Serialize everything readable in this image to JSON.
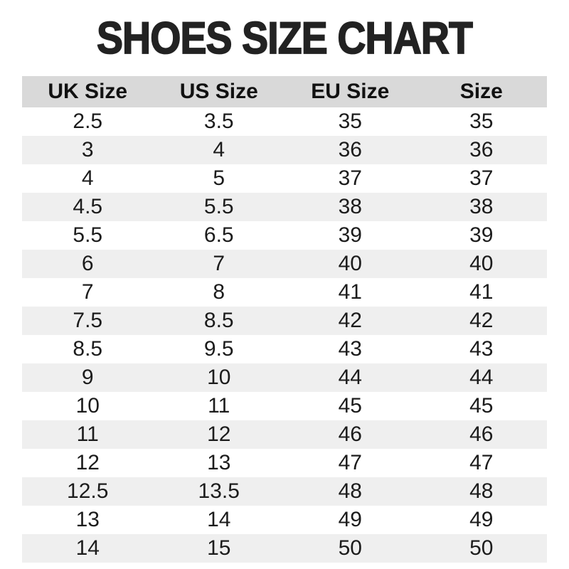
{
  "title": "SHOES SIZE CHART",
  "table": {
    "headers": [
      "UK Size",
      "US Size",
      "EU Size",
      "Size"
    ],
    "rows": [
      [
        "2.5",
        "3.5",
        "35",
        "35"
      ],
      [
        "3",
        "4",
        "36",
        "36"
      ],
      [
        "4",
        "5",
        "37",
        "37"
      ],
      [
        "4.5",
        "5.5",
        "38",
        "38"
      ],
      [
        "5.5",
        "6.5",
        "39",
        "39"
      ],
      [
        "6",
        "7",
        "40",
        "40"
      ],
      [
        "7",
        "8",
        "41",
        "41"
      ],
      [
        "7.5",
        "8.5",
        "42",
        "42"
      ],
      [
        "8.5",
        "9.5",
        "43",
        "43"
      ],
      [
        "9",
        "10",
        "44",
        "44"
      ],
      [
        "10",
        "11",
        "45",
        "45"
      ],
      [
        "11",
        "12",
        "46",
        "46"
      ],
      [
        "12",
        "13",
        "47",
        "47"
      ],
      [
        "12.5",
        "13.5",
        "48",
        "48"
      ],
      [
        "13",
        "14",
        "49",
        "49"
      ],
      [
        "14",
        "15",
        "50",
        "50"
      ]
    ]
  },
  "colors": {
    "title_text": "#222222",
    "header_bg": "#d9d9d9",
    "header_text": "#111111",
    "alt_row_bg": "#efefef",
    "row_bg": "#ffffff",
    "cell_text": "#1c1c1c"
  },
  "chart_data": {
    "type": "table",
    "title": "SHOES SIZE CHART",
    "columns": [
      "UK Size",
      "US Size",
      "EU Size",
      "Size"
    ],
    "rows": [
      [
        "2.5",
        "3.5",
        "35",
        "35"
      ],
      [
        "3",
        "4",
        "36",
        "36"
      ],
      [
        "4",
        "5",
        "37",
        "37"
      ],
      [
        "4.5",
        "5.5",
        "38",
        "38"
      ],
      [
        "5.5",
        "6.5",
        "39",
        "39"
      ],
      [
        "6",
        "7",
        "40",
        "40"
      ],
      [
        "7",
        "8",
        "41",
        "41"
      ],
      [
        "7.5",
        "8.5",
        "42",
        "42"
      ],
      [
        "8.5",
        "9.5",
        "43",
        "43"
      ],
      [
        "9",
        "10",
        "44",
        "44"
      ],
      [
        "10",
        "11",
        "45",
        "45"
      ],
      [
        "11",
        "12",
        "46",
        "46"
      ],
      [
        "12",
        "13",
        "47",
        "47"
      ],
      [
        "12.5",
        "13.5",
        "48",
        "48"
      ],
      [
        "13",
        "14",
        "49",
        "49"
      ],
      [
        "14",
        "15",
        "50",
        "50"
      ]
    ],
    "layout": {
      "striped_rows": true,
      "header_background": "#d9d9d9",
      "stripe_background": "#efefef",
      "text_alignment": "center"
    }
  }
}
